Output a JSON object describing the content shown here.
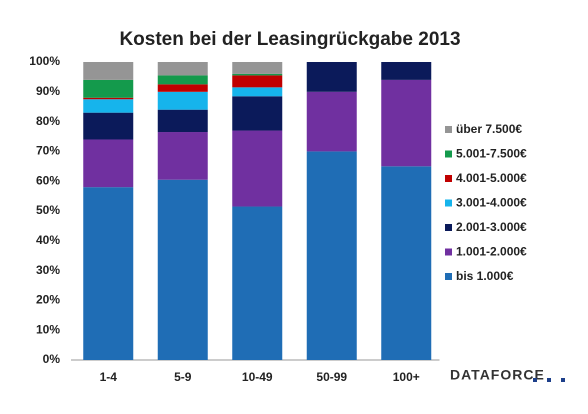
{
  "chart_data": {
    "type": "stacked_bar",
    "title": "Kosten bei der Leasingrückgabe 2013",
    "categories": [
      "1-4",
      "5-9",
      "10-49",
      "50-99",
      "100+"
    ],
    "series": [
      {
        "name": "bis 1.000€",
        "color": "#1f6db5",
        "values": [
          58,
          60.5,
          51.5,
          70,
          65
        ]
      },
      {
        "name": "1.001-2.000€",
        "color": "#7030a0",
        "values": [
          16,
          16,
          25.5,
          20,
          29
        ]
      },
      {
        "name": "2.001-3.000€",
        "color": "#0b1a5a",
        "values": [
          9,
          7.5,
          11.5,
          10,
          6
        ]
      },
      {
        "name": "3.001-4.000€",
        "color": "#16b4ec",
        "values": [
          4.5,
          6,
          3,
          0,
          0
        ]
      },
      {
        "name": "4.001-5.000€",
        "color": "#c00000",
        "values": [
          0.5,
          2.5,
          4,
          0,
          0
        ]
      },
      {
        "name": "5.001-7.500€",
        "color": "#149a4c",
        "values": [
          6,
          3,
          0.5,
          0,
          0
        ]
      },
      {
        "name": "über 7.500€",
        "color": "#959595",
        "values": [
          6,
          4.5,
          4,
          0,
          0
        ]
      }
    ],
    "ylim": [
      0,
      100
    ],
    "yticks": [
      {
        "value": 0,
        "label": "0%"
      },
      {
        "value": 10,
        "label": "10%"
      },
      {
        "value": 20,
        "label": "20%"
      },
      {
        "value": 30,
        "label": "30%"
      },
      {
        "value": 40,
        "label": "40%"
      },
      {
        "value": 50,
        "label": "50%"
      },
      {
        "value": 60,
        "label": "60%"
      },
      {
        "value": 70,
        "label": "70%"
      },
      {
        "value": 80,
        "label": "80%"
      },
      {
        "value": 90,
        "label": "90%"
      },
      {
        "value": 100,
        "label": "100%"
      }
    ],
    "logo": "DATAFORCE"
  }
}
